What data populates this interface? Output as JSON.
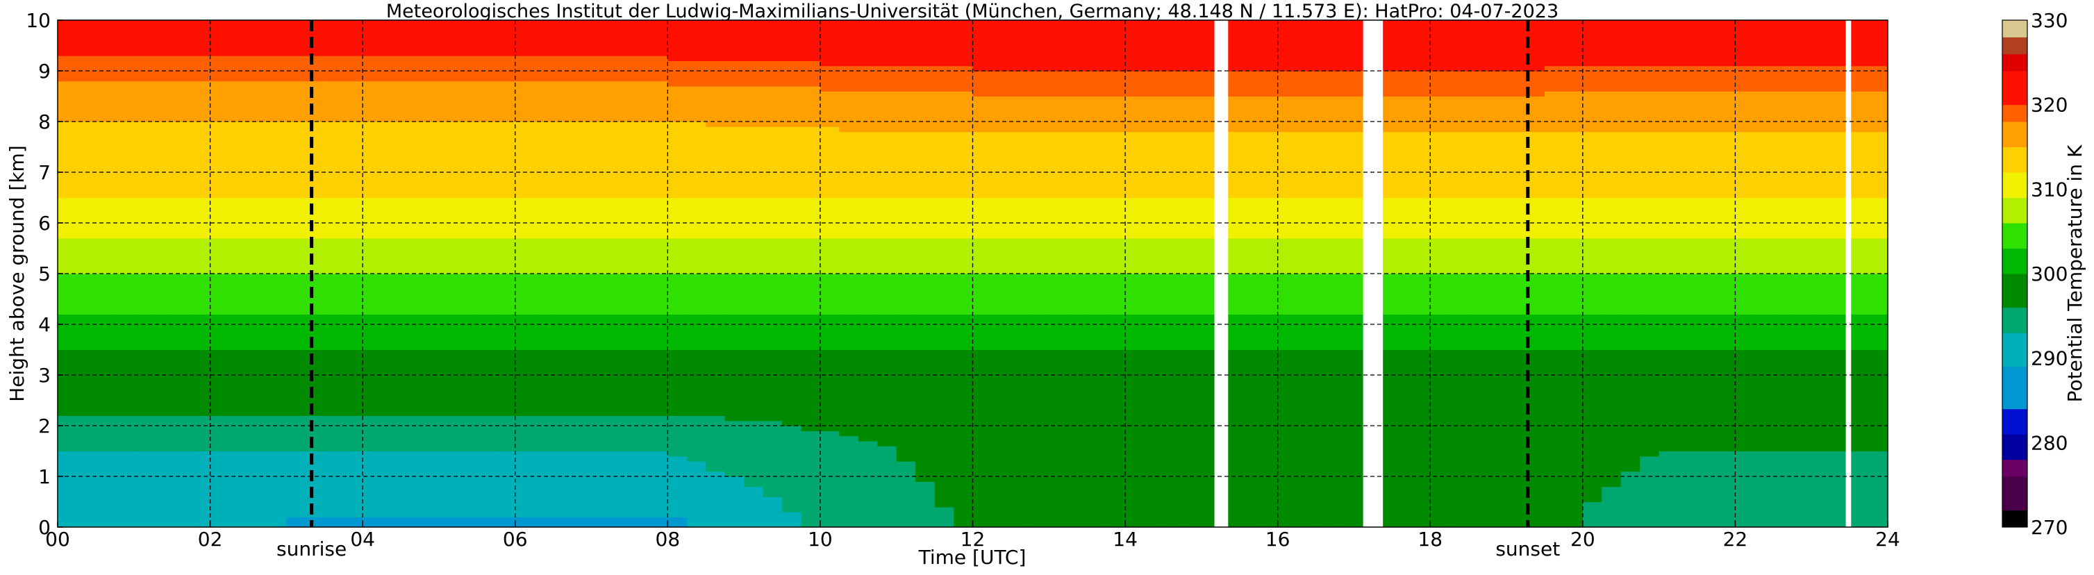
{
  "chart_data": {
    "type": "heatmap",
    "title": "Meteorologisches Institut der Ludwig-Maximilians-Universität (München, Germany; 48.148 N / 11.573 E):    HatPro: 04-07-2023",
    "xlabel": "Time [UTC]",
    "ylabel": "Height above ground [km]",
    "xlim": [
      0,
      24
    ],
    "ylim": [
      0,
      10
    ],
    "x_ticks": [
      "00",
      "02",
      "04",
      "06",
      "08",
      "10",
      "12",
      "14",
      "16",
      "18",
      "20",
      "22",
      "24"
    ],
    "x_tick_values": [
      0,
      2,
      4,
      6,
      8,
      10,
      12,
      14,
      16,
      18,
      20,
      22,
      24
    ],
    "y_ticks": [
      "0",
      "1",
      "2",
      "3",
      "4",
      "5",
      "6",
      "7",
      "8",
      "9",
      "10"
    ],
    "y_tick_values": [
      0,
      1,
      2,
      3,
      4,
      5,
      6,
      7,
      8,
      9,
      10
    ],
    "grid": true,
    "grid_style": "dashed",
    "colorbar": {
      "label": "Potential Temperature in K",
      "ticks": [
        "270",
        "280",
        "290",
        "300",
        "310",
        "320",
        "330"
      ],
      "tick_values": [
        270,
        280,
        290,
        300,
        310,
        320,
        330
      ],
      "range": [
        270,
        330
      ],
      "levels": [
        {
          "from": 270,
          "to": 272,
          "color": "#000000"
        },
        {
          "from": 272,
          "to": 276,
          "color": "#4a0048"
        },
        {
          "from": 276,
          "to": 278,
          "color": "#6a0066"
        },
        {
          "from": 278,
          "to": 281,
          "color": "#0000a0"
        },
        {
          "from": 281,
          "to": 284,
          "color": "#0010d0"
        },
        {
          "from": 284,
          "to": 289,
          "color": "#0098d0"
        },
        {
          "from": 289,
          "to": 293,
          "color": "#00b0b8"
        },
        {
          "from": 293,
          "to": 296,
          "color": "#00a870"
        },
        {
          "from": 296,
          "to": 300,
          "color": "#008a00"
        },
        {
          "from": 300,
          "to": 303,
          "color": "#00b800"
        },
        {
          "from": 303,
          "to": 306,
          "color": "#30e000"
        },
        {
          "from": 306,
          "to": 309,
          "color": "#b0f000"
        },
        {
          "from": 309,
          "to": 312,
          "color": "#f0f000"
        },
        {
          "from": 312,
          "to": 315,
          "color": "#ffd000"
        },
        {
          "from": 315,
          "to": 318,
          "color": "#ffa000"
        },
        {
          "from": 318,
          "to": 320,
          "color": "#ff6000"
        },
        {
          "from": 320,
          "to": 324,
          "color": "#ff1000"
        },
        {
          "from": 324,
          "to": 326,
          "color": "#e00000"
        },
        {
          "from": 326,
          "to": 328,
          "color": "#b04020"
        },
        {
          "from": 328,
          "to": 330,
          "color": "#d8c890"
        }
      ]
    },
    "profile": {
      "heights_km": [
        0,
        0.5,
        1,
        1.5,
        2,
        2.5,
        3,
        3.5,
        4,
        4.5,
        5,
        5.5,
        6,
        6.5,
        7,
        7.5,
        8,
        8.5,
        9,
        9.5,
        10
      ],
      "night_theta_K": [
        290,
        291,
        292,
        293,
        295,
        297,
        298,
        300,
        302,
        304,
        306,
        308,
        310,
        312,
        313,
        314,
        315,
        317,
        319,
        321,
        323
      ],
      "day_theta_K": [
        298,
        298,
        298,
        298,
        298,
        298,
        299,
        300,
        302,
        304,
        306,
        308,
        310,
        312,
        313,
        314,
        316,
        318,
        320,
        322,
        323
      ]
    },
    "data_gaps_hours": [
      [
        15.17,
        15.35
      ],
      [
        17.12,
        17.38
      ],
      [
        23.45,
        23.52
      ]
    ],
    "annotations": [
      {
        "label": "sunrise",
        "x": 3.33
      },
      {
        "label": "sunset",
        "x": 19.28
      }
    ]
  }
}
